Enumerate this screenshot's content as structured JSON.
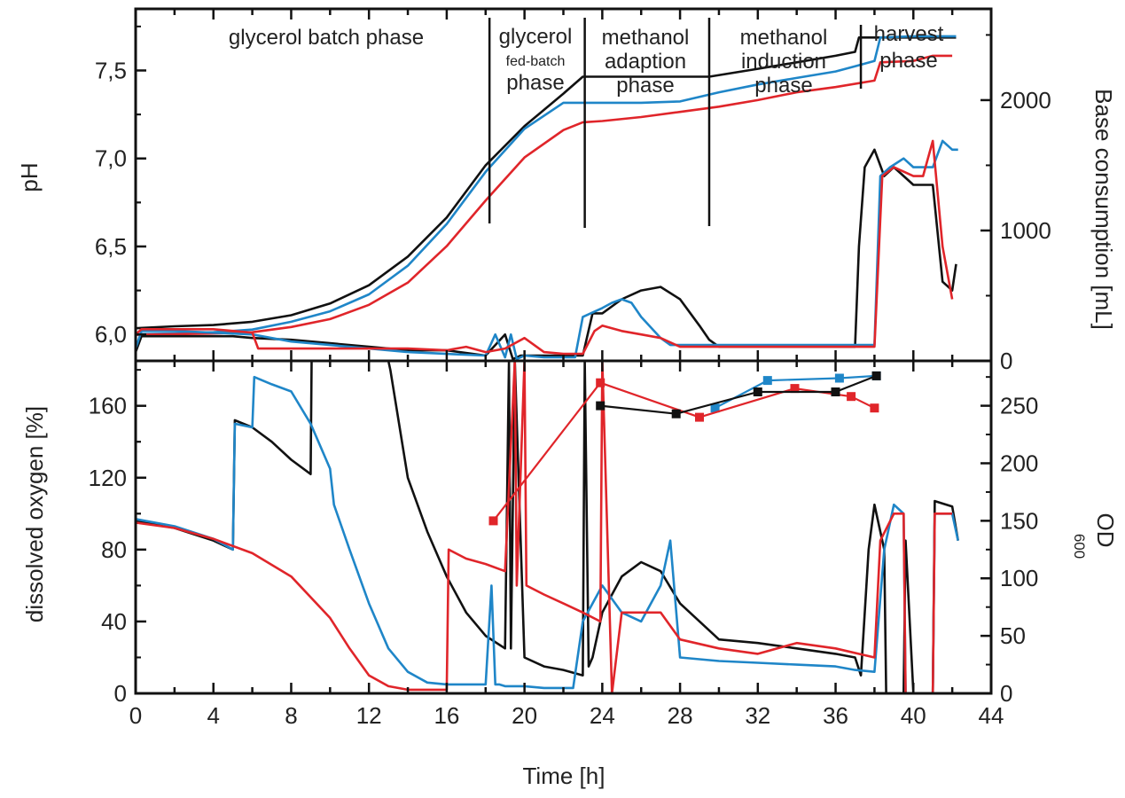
{
  "chart_data": [
    {
      "type": "line",
      "panel": "top",
      "xlabel": "",
      "ylabel": "pH",
      "y2label": "Base consumption [mL]",
      "xlim": [
        0,
        44
      ],
      "ylim": [
        5.85,
        7.85
      ],
      "y2lim": [
        0,
        2700
      ],
      "yticks": [
        "6,0",
        "6,5",
        "7,0",
        "7,5"
      ],
      "yticks_values": [
        6.0,
        6.5,
        7.0,
        7.5
      ],
      "y2ticks": [
        "0",
        "1000",
        "2000"
      ],
      "y2ticks_values": [
        0,
        1000,
        2000
      ],
      "phase_labels": [
        {
          "id": "glycerol-batch",
          "lines": [
            "glycerol batch phase"
          ]
        },
        {
          "id": "glycerol-fed-batch",
          "lines": [
            "glycerol",
            "fed-batch",
            "phase"
          ]
        },
        {
          "id": "methanol-adaption",
          "lines": [
            "methanol",
            "adaption",
            "phase"
          ]
        },
        {
          "id": "methanol-induction",
          "lines": [
            "methanol",
            "induction",
            "phase"
          ]
        },
        {
          "id": "harvest",
          "lines": [
            "harvest",
            "phase"
          ]
        }
      ],
      "phase_boundaries_h": [
        18.2,
        23.1,
        29.5,
        37.3
      ],
      "series": [
        {
          "color": "#111111",
          "axis": "y2",
          "quantity": "base",
          "x": [
            0,
            2,
            4,
            6,
            8,
            10,
            12,
            14,
            16,
            18,
            20,
            22,
            23,
            24,
            26,
            28,
            29.5,
            32,
            34,
            36,
            37,
            37.2,
            38,
            40,
            42.2
          ],
          "y": [
            250,
            265,
            275,
            300,
            350,
            440,
            580,
            800,
            1100,
            1500,
            1800,
            2050,
            2180,
            2180,
            2180,
            2180,
            2180,
            2240,
            2290,
            2340,
            2370,
            2480,
            2480,
            2480,
            2480
          ]
        },
        {
          "color": "#1f86c8",
          "axis": "y2",
          "quantity": "base",
          "x": [
            0,
            2,
            4,
            6,
            8,
            10,
            12,
            14,
            16,
            18,
            20,
            22,
            24,
            26,
            28,
            30,
            32,
            34,
            36,
            37,
            38,
            38.3,
            40,
            42.2
          ],
          "y": [
            205,
            210,
            220,
            240,
            300,
            380,
            510,
            730,
            1050,
            1450,
            1780,
            1980,
            1980,
            1980,
            1990,
            2060,
            2120,
            2170,
            2220,
            2260,
            2300,
            2480,
            2490,
            2490
          ]
        },
        {
          "color": "#e0252a",
          "axis": "y2",
          "quantity": "base",
          "x": [
            0,
            2,
            4,
            6,
            8,
            10,
            12,
            14,
            16,
            18,
            20,
            22,
            23,
            24,
            26,
            28,
            30,
            32,
            34,
            36,
            38,
            38.3,
            40,
            41,
            42
          ],
          "y": [
            200,
            205,
            210,
            220,
            260,
            320,
            430,
            600,
            880,
            1230,
            1560,
            1770,
            1830,
            1840,
            1870,
            1910,
            1950,
            2000,
            2060,
            2100,
            2150,
            2290,
            2300,
            2340,
            2340
          ]
        },
        {
          "color": "#111111",
          "axis": "y",
          "quantity": "pH",
          "x": [
            0,
            0.3,
            1,
            2,
            4,
            5,
            6,
            8,
            10,
            12,
            14,
            16,
            18,
            19,
            19.4,
            19.8,
            20,
            21,
            22,
            23,
            23.5,
            24,
            25,
            26,
            27,
            28,
            29,
            29.5,
            30,
            32,
            34,
            36,
            37,
            37.2,
            37.5,
            38,
            38.5,
            39,
            40,
            41,
            41.5,
            42,
            42.2
          ],
          "y": [
            5.9,
            5.99,
            5.99,
            5.99,
            5.99,
            5.99,
            5.98,
            5.97,
            5.95,
            5.93,
            5.91,
            5.91,
            5.88,
            6.0,
            5.86,
            5.88,
            5.88,
            5.88,
            5.88,
            5.88,
            6.12,
            6.12,
            6.2,
            6.25,
            6.27,
            6.2,
            6.05,
            5.97,
            5.93,
            5.93,
            5.93,
            5.93,
            5.93,
            6.5,
            6.95,
            7.05,
            6.9,
            6.95,
            6.85,
            6.85,
            6.3,
            6.25,
            6.4
          ]
        },
        {
          "color": "#1f86c8",
          "axis": "y",
          "quantity": "pH",
          "x": [
            0,
            0.3,
            1,
            2,
            4,
            6,
            8,
            10,
            12,
            14,
            16,
            18,
            18.5,
            19,
            19.3,
            19.6,
            20,
            21,
            22,
            22.6,
            23,
            24,
            24.5,
            25,
            25.5,
            26,
            27,
            27.5,
            28,
            30,
            32,
            34,
            36,
            38,
            38.3,
            38.8,
            39.5,
            40,
            40.5,
            41,
            41.5,
            42,
            42.3
          ],
          "y": [
            5.92,
            6.02,
            6.02,
            6.02,
            6.01,
            6.0,
            5.96,
            5.94,
            5.92,
            5.9,
            5.89,
            5.88,
            6.0,
            5.87,
            6.0,
            5.86,
            5.88,
            5.87,
            5.87,
            5.87,
            6.1,
            6.15,
            6.18,
            6.2,
            6.18,
            6.1,
            5.98,
            5.94,
            5.94,
            5.94,
            5.94,
            5.94,
            5.94,
            5.94,
            6.9,
            6.95,
            7.0,
            6.95,
            6.95,
            6.95,
            7.1,
            7.05,
            7.05
          ]
        },
        {
          "color": "#e0252a",
          "axis": "y",
          "quantity": "pH",
          "x": [
            0,
            0.3,
            1,
            2,
            4,
            6,
            6.3,
            8,
            10,
            12,
            14,
            16,
            17,
            18,
            19,
            20,
            21,
            22,
            23,
            23.6,
            24,
            25,
            26,
            27,
            28,
            30,
            32,
            34,
            36,
            38,
            38.4,
            39,
            40,
            40.5,
            41,
            41.5,
            42
          ],
          "y": [
            6.0,
            6.03,
            6.03,
            6.03,
            6.03,
            6.01,
            5.92,
            5.92,
            5.92,
            5.92,
            5.92,
            5.91,
            5.93,
            5.9,
            5.92,
            5.98,
            5.9,
            5.89,
            5.89,
            6.02,
            6.05,
            6.02,
            6.0,
            5.98,
            5.93,
            5.93,
            5.93,
            5.93,
            5.93,
            5.93,
            6.9,
            6.95,
            6.9,
            6.9,
            7.1,
            6.5,
            6.2
          ]
        }
      ]
    },
    {
      "type": "line",
      "panel": "bottom",
      "xlabel": "Time [h]",
      "ylabel": "dissolved oxygen [%]",
      "y2label_main": "OD",
      "y2label_sub": "600",
      "xlim": [
        0,
        44
      ],
      "ylim": [
        0,
        185
      ],
      "y2lim": [
        0,
        289
      ],
      "xticks": [
        "0",
        "4",
        "8",
        "12",
        "16",
        "20",
        "24",
        "28",
        "32",
        "36",
        "40",
        "44"
      ],
      "xticks_values": [
        0,
        4,
        8,
        12,
        16,
        20,
        24,
        28,
        32,
        36,
        40,
        44
      ],
      "yticks": [
        "0",
        "40",
        "80",
        "120",
        "160"
      ],
      "yticks_values": [
        0,
        40,
        80,
        120,
        160
      ],
      "y2ticks": [
        "0",
        "50",
        "100",
        "150",
        "200",
        "250"
      ],
      "y2ticks_values": [
        0,
        50,
        100,
        150,
        200,
        250
      ],
      "series": [
        {
          "color": "#111111",
          "axis": "y",
          "quantity": "DO",
          "x": [
            0,
            2,
            4,
            5,
            5.1,
            6,
            7,
            8,
            9,
            9.05,
            12,
            13,
            13.1,
            14,
            15,
            16,
            17,
            18,
            19,
            19.2,
            19.3,
            19.5,
            20,
            21,
            22,
            23,
            23.1,
            23.3,
            23.5,
            24,
            25,
            26,
            27,
            28,
            30,
            32,
            34,
            36,
            37,
            37.3,
            37.7,
            38,
            38.5,
            38.6,
            39,
            39.5,
            39.6,
            40,
            40.5,
            41,
            41.1,
            42,
            42.3
          ],
          "y": [
            96,
            92,
            85,
            80,
            152,
            148,
            140,
            130,
            122,
            185,
            185,
            185,
            180,
            120,
            90,
            65,
            45,
            32,
            25,
            185,
            25,
            185,
            20,
            15,
            13,
            10,
            185,
            15,
            20,
            45,
            65,
            73,
            68,
            50,
            30,
            28,
            25,
            22,
            20,
            10,
            80,
            105,
            80,
            0,
            0,
            0,
            85,
            0,
            0,
            0,
            107,
            104,
            85
          ]
        },
        {
          "color": "#1f86c8",
          "axis": "y",
          "quantity": "DO",
          "x": [
            0,
            2,
            4,
            5,
            5.1,
            6,
            6.1,
            7,
            8,
            9,
            10,
            10.2,
            11,
            12,
            13,
            14,
            15,
            16,
            17,
            18,
            18.3,
            18.5,
            18.7,
            19,
            20,
            21,
            22,
            22.5,
            23,
            24,
            25,
            26,
            27,
            27.5,
            28,
            30,
            32,
            34,
            36,
            37,
            38,
            38.5,
            39,
            39.5,
            39.6,
            40,
            40.5,
            41,
            41.1,
            42,
            42.3
          ],
          "y": [
            97,
            93,
            86,
            80,
            150,
            148,
            176,
            172,
            168,
            150,
            125,
            105,
            80,
            50,
            25,
            12,
            6,
            5,
            5,
            5,
            60,
            5,
            5,
            4,
            4,
            3,
            3,
            3,
            40,
            60,
            45,
            40,
            60,
            85,
            20,
            18,
            17,
            16,
            15,
            13,
            12,
            80,
            105,
            100,
            0,
            0,
            0,
            0,
            100,
            100,
            85
          ]
        },
        {
          "color": "#e0252a",
          "axis": "y",
          "quantity": "DO",
          "x": [
            0,
            2,
            4,
            6,
            8,
            10,
            11,
            12,
            13,
            14,
            15,
            16,
            16.1,
            17,
            18,
            19,
            19.5,
            19.6,
            20,
            20.1,
            21,
            22,
            23,
            23.9,
            24,
            24.5,
            25,
            26,
            27,
            28,
            30,
            32,
            34,
            36,
            38,
            38.3,
            39,
            39.5,
            39.6,
            40,
            40.5,
            41,
            41.1,
            42
          ],
          "y": [
            95,
            92,
            86,
            78,
            65,
            42,
            25,
            10,
            4,
            2,
            2,
            2,
            80,
            75,
            72,
            68,
            185,
            60,
            185,
            60,
            55,
            50,
            45,
            40,
            185,
            0,
            45,
            45,
            45,
            30,
            25,
            22,
            28,
            25,
            20,
            85,
            100,
            100,
            0,
            0,
            0,
            0,
            100,
            100
          ]
        },
        {
          "color": "#1f86c8",
          "axis": "y2",
          "quantity": "OD600",
          "markers": true,
          "x": [
            29.8,
            32.5,
            36.2,
            38.1
          ],
          "y": [
            248,
            272,
            274,
            276
          ]
        },
        {
          "color": "#e0252a",
          "axis": "y2",
          "quantity": "OD600",
          "markers": true,
          "x": [
            18.4,
            23.9,
            29.0,
            33.9,
            36.8,
            38.0
          ],
          "y": [
            150,
            270,
            240,
            265,
            258,
            248
          ]
        },
        {
          "color": "#111111",
          "axis": "y2",
          "quantity": "OD600",
          "markers": true,
          "x": [
            23.9,
            27.8,
            32.0,
            36.0,
            38.1
          ],
          "y": [
            250,
            243,
            262,
            262,
            276
          ]
        }
      ]
    }
  ]
}
